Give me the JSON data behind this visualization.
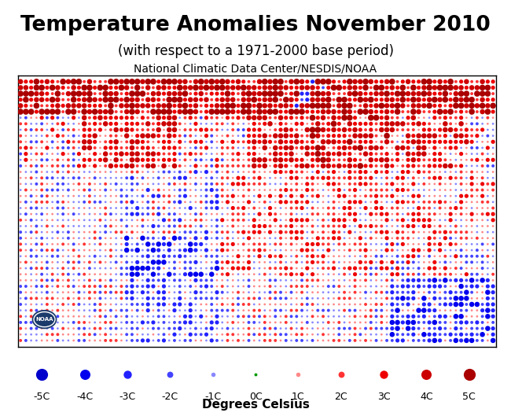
{
  "title": "Temperature Anomalies November 2010",
  "subtitle": "(with respect to a 1971-2000 base period)",
  "source": "National Climatic Data Center/NESDIS/NOAA",
  "xlabel": "Degrees Celsius",
  "legend_labels": [
    "-5C",
    "-4C",
    "-3C",
    "-2C",
    "-1C",
    "0C",
    "1C",
    "2C",
    "3C",
    "4C",
    "5C"
  ],
  "legend_values": [
    -5,
    -4,
    -3,
    -2,
    -1,
    0,
    1,
    2,
    3,
    4,
    5
  ],
  "background_color": "#ffffff",
  "map_bg": "#ffffff",
  "title_fontsize": 19,
  "subtitle_fontsize": 12,
  "source_fontsize": 10,
  "legend_fontsize": 9,
  "xlabel_fontsize": 11
}
